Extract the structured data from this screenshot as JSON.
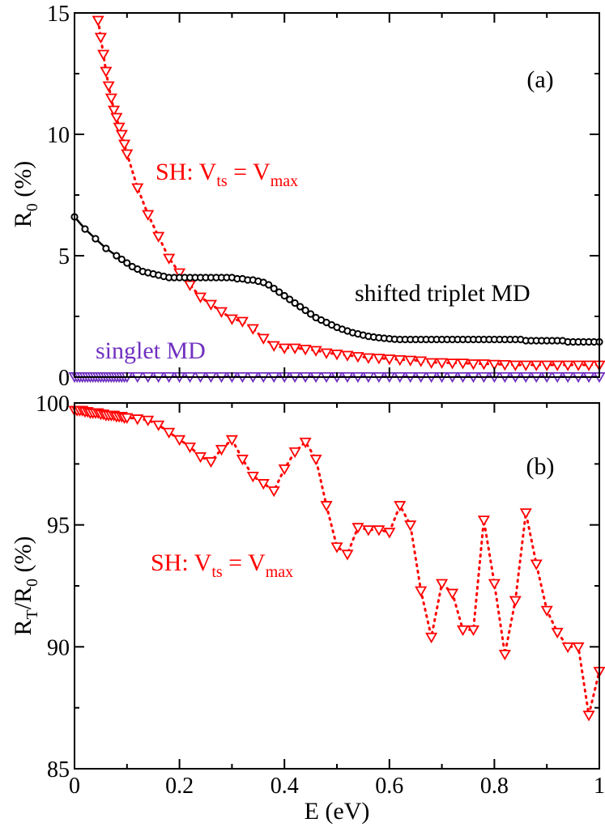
{
  "chart_data": [
    {
      "id": "a",
      "type": "scatter",
      "panel_label": "(a)",
      "xlabel": "",
      "ylabel": {
        "main": "R",
        "sub": "0",
        "rest": " (%)"
      },
      "xlim": [
        0,
        1
      ],
      "ylim": [
        0,
        15
      ],
      "yticks": [
        0,
        5,
        10,
        15
      ],
      "ytick_labels": [
        "0",
        "5",
        "10",
        "15"
      ],
      "series": [
        {
          "name": "SH: Vts = Vmax",
          "color": "#ff0000",
          "marker": "triangle-down",
          "line": "dotted",
          "x": [
            0.045,
            0.05,
            0.055,
            0.06,
            0.065,
            0.07,
            0.075,
            0.08,
            0.085,
            0.09,
            0.095,
            0.1,
            0.12,
            0.14,
            0.16,
            0.18,
            0.2,
            0.22,
            0.24,
            0.26,
            0.28,
            0.3,
            0.32,
            0.34,
            0.36,
            0.38,
            0.4,
            0.42,
            0.44,
            0.46,
            0.48,
            0.5,
            0.52,
            0.54,
            0.56,
            0.58,
            0.6,
            0.62,
            0.64,
            0.66,
            0.68,
            0.7,
            0.72,
            0.74,
            0.76,
            0.78,
            0.8,
            0.82,
            0.84,
            0.86,
            0.88,
            0.9,
            0.92,
            0.94,
            0.96,
            0.98,
            1.0
          ],
          "y": [
            14.7,
            14.0,
            13.3,
            12.6,
            12.0,
            11.5,
            11.0,
            10.7,
            10.3,
            10.0,
            9.6,
            9.2,
            7.8,
            6.7,
            5.8,
            4.9,
            4.3,
            3.8,
            3.3,
            3.0,
            2.7,
            2.4,
            2.3,
            2.0,
            1.6,
            1.3,
            1.2,
            1.2,
            1.15,
            1.1,
            1.0,
            0.95,
            0.9,
            0.85,
            0.8,
            0.78,
            0.75,
            0.72,
            0.7,
            0.67,
            0.6,
            0.6,
            0.58,
            0.58,
            0.55,
            0.55,
            0.53,
            0.52,
            0.5,
            0.5,
            0.5,
            0.5,
            0.5,
            0.5,
            0.5,
            0.5,
            0.5
          ]
        },
        {
          "name": "shifted triplet MD",
          "color": "#000000",
          "marker": "circle-open",
          "line": "solid",
          "x": [
            0.0,
            0.02,
            0.04,
            0.06,
            0.08,
            0.09,
            0.1,
            0.11,
            0.12,
            0.13,
            0.14,
            0.15,
            0.16,
            0.17,
            0.18,
            0.19,
            0.2,
            0.21,
            0.22,
            0.23,
            0.24,
            0.25,
            0.26,
            0.27,
            0.28,
            0.29,
            0.3,
            0.31,
            0.32,
            0.33,
            0.34,
            0.35,
            0.36,
            0.37,
            0.38,
            0.39,
            0.4,
            0.41,
            0.42,
            0.43,
            0.44,
            0.45,
            0.46,
            0.47,
            0.48,
            0.49,
            0.5,
            0.51,
            0.52,
            0.53,
            0.54,
            0.55,
            0.56,
            0.57,
            0.58,
            0.59,
            0.6,
            0.61,
            0.62,
            0.63,
            0.64,
            0.65,
            0.66,
            0.67,
            0.68,
            0.69,
            0.7,
            0.71,
            0.72,
            0.73,
            0.74,
            0.75,
            0.76,
            0.77,
            0.78,
            0.79,
            0.8,
            0.81,
            0.82,
            0.83,
            0.84,
            0.85,
            0.86,
            0.87,
            0.88,
            0.89,
            0.9,
            0.91,
            0.92,
            0.93,
            0.94,
            0.95,
            0.96,
            0.97,
            0.98,
            0.99,
            1.0
          ],
          "y": [
            6.6,
            6.1,
            5.7,
            5.3,
            5.0,
            4.85,
            4.7,
            4.55,
            4.45,
            4.35,
            4.3,
            4.25,
            4.2,
            4.15,
            4.1,
            4.1,
            4.1,
            4.1,
            4.1,
            4.1,
            4.1,
            4.1,
            4.1,
            4.1,
            4.1,
            4.1,
            4.1,
            4.05,
            4.05,
            4.0,
            4.0,
            3.95,
            3.9,
            3.8,
            3.65,
            3.5,
            3.35,
            3.2,
            3.05,
            2.9,
            2.75,
            2.6,
            2.45,
            2.35,
            2.25,
            2.15,
            2.05,
            1.97,
            1.9,
            1.83,
            1.78,
            1.73,
            1.68,
            1.65,
            1.62,
            1.6,
            1.58,
            1.56,
            1.55,
            1.55,
            1.55,
            1.55,
            1.55,
            1.55,
            1.55,
            1.55,
            1.55,
            1.55,
            1.55,
            1.55,
            1.55,
            1.55,
            1.55,
            1.55,
            1.55,
            1.55,
            1.55,
            1.55,
            1.55,
            1.55,
            1.55,
            1.55,
            1.5,
            1.5,
            1.5,
            1.5,
            1.5,
            1.5,
            1.5,
            1.5,
            1.45,
            1.45,
            1.45,
            1.45,
            1.45,
            1.45,
            1.45
          ]
        },
        {
          "name": "singlet MD",
          "color": "#7030c0",
          "marker": "triangle-down",
          "line": "dashed",
          "x": [
            0.0,
            0.005,
            0.01,
            0.015,
            0.02,
            0.025,
            0.03,
            0.035,
            0.04,
            0.045,
            0.05,
            0.055,
            0.06,
            0.065,
            0.07,
            0.075,
            0.08,
            0.085,
            0.09,
            0.095,
            0.1,
            0.12,
            0.14,
            0.16,
            0.18,
            0.2,
            0.22,
            0.24,
            0.26,
            0.28,
            0.3,
            0.32,
            0.34,
            0.36,
            0.38,
            0.4,
            0.42,
            0.44,
            0.46,
            0.48,
            0.5,
            0.52,
            0.54,
            0.56,
            0.58,
            0.6,
            0.62,
            0.64,
            0.66,
            0.68,
            0.7,
            0.72,
            0.74,
            0.76,
            0.78,
            0.8,
            0.82,
            0.84,
            0.86,
            0.88,
            0.9,
            0.92,
            0.94,
            0.96,
            0.98,
            1.0
          ],
          "y": [
            0.02,
            0.02,
            0.02,
            0.02,
            0.02,
            0.02,
            0.02,
            0.02,
            0.02,
            0.02,
            0.02,
            0.02,
            0.02,
            0.02,
            0.02,
            0.02,
            0.02,
            0.02,
            0.02,
            0.02,
            0.02,
            0.02,
            0.02,
            0.02,
            0.02,
            0.02,
            0.02,
            0.02,
            0.02,
            0.02,
            0.02,
            0.02,
            0.02,
            0.02,
            0.02,
            0.02,
            0.02,
            0.02,
            0.02,
            0.02,
            0.02,
            0.02,
            0.02,
            0.02,
            0.02,
            0.02,
            0.02,
            0.02,
            0.02,
            0.02,
            0.02,
            0.02,
            0.02,
            0.02,
            0.02,
            0.02,
            0.02,
            0.02,
            0.02,
            0.02,
            0.02,
            0.02,
            0.02,
            0.02,
            0.02,
            0.02
          ]
        }
      ],
      "annotations": [
        {
          "id": "sh",
          "color": "#ff0000",
          "parts": [
            "SH: V",
            "ts",
            " = V",
            "max"
          ]
        },
        {
          "id": "triplet",
          "color": "#000000",
          "text": "shifted triplet MD"
        },
        {
          "id": "singlet",
          "color": "#7030c0",
          "text": "singlet MD"
        }
      ]
    },
    {
      "id": "b",
      "type": "scatter",
      "panel_label": "(b)",
      "xlabel": "E (eV)",
      "ylabel": {
        "main": "R",
        "sub": "T",
        "mid": "/R",
        "sub2": "0",
        "rest": " (%)"
      },
      "xlim": [
        0,
        1
      ],
      "ylim": [
        85,
        100
      ],
      "xticks": [
        0,
        0.2,
        0.4,
        0.6,
        0.8,
        1
      ],
      "xtick_labels": [
        "0",
        "0.2",
        "0.4",
        "0.6",
        "0.8",
        "1"
      ],
      "yticks": [
        85,
        90,
        95,
        100
      ],
      "ytick_labels": [
        "85",
        "90",
        "95",
        "100"
      ],
      "series": [
        {
          "name": "SH: Vts = Vmax",
          "color": "#ff0000",
          "marker": "triangle-down",
          "line": "dotted",
          "x": [
            0.0,
            0.005,
            0.01,
            0.015,
            0.02,
            0.025,
            0.03,
            0.035,
            0.04,
            0.045,
            0.05,
            0.055,
            0.06,
            0.065,
            0.07,
            0.075,
            0.08,
            0.085,
            0.09,
            0.095,
            0.1,
            0.12,
            0.14,
            0.16,
            0.18,
            0.2,
            0.22,
            0.24,
            0.26,
            0.28,
            0.3,
            0.32,
            0.34,
            0.36,
            0.38,
            0.4,
            0.42,
            0.44,
            0.46,
            0.48,
            0.5,
            0.52,
            0.54,
            0.56,
            0.58,
            0.6,
            0.62,
            0.64,
            0.66,
            0.68,
            0.7,
            0.72,
            0.74,
            0.76,
            0.78,
            0.8,
            0.82,
            0.84,
            0.86,
            0.88,
            0.9,
            0.92,
            0.94,
            0.96,
            0.98,
            1.0
          ],
          "y": [
            99.7,
            99.7,
            99.7,
            99.7,
            99.65,
            99.65,
            99.6,
            99.6,
            99.6,
            99.6,
            99.55,
            99.55,
            99.5,
            99.5,
            99.5,
            99.5,
            99.45,
            99.45,
            99.45,
            99.4,
            99.4,
            99.35,
            99.3,
            99.1,
            98.8,
            98.5,
            98.2,
            97.8,
            97.6,
            98.1,
            98.5,
            97.7,
            97.0,
            96.7,
            96.4,
            97.3,
            98.0,
            98.4,
            97.7,
            95.8,
            94.1,
            93.8,
            94.9,
            94.8,
            94.8,
            94.7,
            95.8,
            95.0,
            92.3,
            90.4,
            92.6,
            92.2,
            90.7,
            90.7,
            95.2,
            92.6,
            89.7,
            91.9,
            95.5,
            93.4,
            91.5,
            90.6,
            90.0,
            90.0,
            87.2,
            89.0
          ]
        }
      ],
      "annotations": [
        {
          "id": "sh",
          "color": "#ff0000",
          "parts": [
            "SH: V",
            "ts",
            " = V",
            "max"
          ]
        }
      ]
    }
  ]
}
